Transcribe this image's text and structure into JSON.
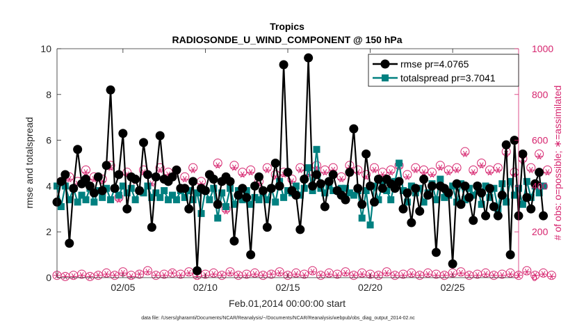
{
  "chart_data": {
    "type": "line",
    "title": "Tropics",
    "subtitle": "RADIOSONDE_U_WIND_COMPONENT @ 150 hPa",
    "xlabel": "Feb.01,2014 00:00:00 start",
    "ylabel": "rmse and totalspread",
    "y2label": "# of obs: o=possible; ∗=assimilated",
    "footer": "data file: /Users/gharamti/Documents/NCAR/Reanalysis/~/Documents/NCAR/Reanalysis/webpub/obs_diag_output_2014-02.nc",
    "xlim": [
      1.0,
      29.0
    ],
    "ylim": [
      0,
      10
    ],
    "y2lim": [
      0,
      1000
    ],
    "xticks": [
      5,
      10,
      15,
      20,
      25
    ],
    "xtick_labels": [
      "02/05",
      "02/10",
      "02/15",
      "02/20",
      "02/25"
    ],
    "yticks": [
      0,
      2,
      4,
      6,
      8,
      10
    ],
    "ytick_labels": [
      "0",
      "2",
      "4",
      "6",
      "8",
      "10"
    ],
    "y2ticks": [
      0,
      200,
      400,
      600,
      800,
      1000
    ],
    "y2tick_labels": [
      "0",
      "200",
      "400",
      "600",
      "800",
      "1000"
    ],
    "x_start": 1.0,
    "x_step": 0.25,
    "legend_position": "top-right",
    "colors": {
      "rmse": "#000000",
      "totalspread": "#008080",
      "obs": "#d6246e"
    },
    "series": [
      {
        "name": "rmse pr=4.0765",
        "axis": "left",
        "marker": "circle",
        "values": [
          3.3,
          4.2,
          4.5,
          1.5,
          3.9,
          5.6,
          4.1,
          4.3,
          4.0,
          3.7,
          4.4,
          3.8,
          4.9,
          8.2,
          3.9,
          4.5,
          6.3,
          3.0,
          4.4,
          4.3,
          3.8,
          5.9,
          4.5,
          2.2,
          4.4,
          6.2,
          4.3,
          4.2,
          4.4,
          4.7,
          3.9,
          3.9,
          3.0,
          4.2,
          0.3,
          3.9,
          3.8,
          4.5,
          4.3,
          3.2,
          4.2,
          4.4,
          4.2,
          1.6,
          3.6,
          3.9,
          3.5,
          1.0,
          4.0,
          4.4,
          3.8,
          2.2,
          3.9,
          5.0,
          4.0,
          9.3,
          4.6,
          3.8,
          3.6,
          2.1,
          4.3,
          9.6,
          4.0,
          4.5,
          4.1,
          3.1,
          4.2,
          4.5,
          3.8,
          3.6,
          3.4,
          4.6,
          6.5,
          3.9,
          3.2,
          5.4,
          4.0,
          3.3,
          4.3,
          3.9,
          4.3,
          4.1,
          3.9,
          4.2,
          3.0,
          3.7,
          2.4,
          3.9,
          2.9,
          4.3,
          3.6,
          4.0,
          1.1,
          4.0,
          3.9,
          3.7,
          0.6,
          4.1,
          3.2,
          4.0,
          3.5,
          2.5,
          4.0,
          3.7,
          2.7,
          3.9,
          3.1,
          2.7,
          3.6,
          5.8,
          1.0,
          6.0,
          2.7,
          5.4,
          3.5,
          3.0,
          4.1,
          4.6,
          2.7
        ]
      },
      {
        "name": "totalspread pr=3.7041",
        "axis": "left",
        "marker": "square",
        "values": [
          4.0,
          3.1,
          4.0,
          3.4,
          3.9,
          3.3,
          3.6,
          3.4,
          3.9,
          3.3,
          3.8,
          3.5,
          3.9,
          3.4,
          3.9,
          3.6,
          4.0,
          3.7,
          3.9,
          3.4,
          3.8,
          3.7,
          4.0,
          3.5,
          3.7,
          3.5,
          3.8,
          3.4,
          3.6,
          3.4,
          3.8,
          3.5,
          3.8,
          3.4,
          3.7,
          2.8,
          3.8,
          3.4,
          3.9,
          2.6,
          3.7,
          3.1,
          3.9,
          3.2,
          3.8,
          3.4,
          3.8,
          3.2,
          3.5,
          3.4,
          3.7,
          3.4,
          3.9,
          3.3,
          4.2,
          3.5,
          3.8,
          3.7,
          4.0,
          3.6,
          3.9,
          4.8,
          3.8,
          5.6,
          3.9,
          3.7,
          4.0,
          3.8,
          3.8,
          3.9,
          3.9,
          3.7,
          3.6,
          3.8,
          2.6,
          3.8,
          2.3,
          4.0,
          3.4,
          4.1,
          3.8,
          3.4,
          4.2,
          5.0,
          3.8,
          3.3,
          4.0,
          3.7,
          3.9,
          3.3,
          3.7,
          4.1,
          3.4,
          4.3,
          3.5,
          3.6,
          4.0,
          3.3,
          4.1,
          3.4,
          3.9,
          3.6,
          4.0,
          3.2,
          4.0,
          3.5,
          3.9,
          3.0,
          4.1,
          3.3,
          4.2,
          3.6,
          3.9,
          3.2,
          4.2,
          3.5,
          4.0,
          3.7,
          4.0
        ]
      },
      {
        "name": "possible",
        "axis": "right",
        "marker": "circle-open",
        "values": [
          10,
          420,
          5,
          440,
          10,
          420,
          15,
          470,
          5,
          440,
          10,
          430,
          20,
          490,
          10,
          350,
          25,
          460,
          10,
          430,
          15,
          470,
          30,
          420,
          10,
          480,
          15,
          460,
          20,
          470,
          15,
          440,
          25,
          480,
          10,
          420,
          15,
          450,
          20,
          500,
          10,
          300,
          25,
          490,
          10,
          460,
          15,
          470,
          20,
          420,
          10,
          480,
          15,
          450,
          25,
          460,
          10,
          430,
          20,
          480,
          15,
          460,
          30,
          490,
          10,
          470,
          20,
          480,
          15,
          440,
          25,
          490,
          10,
          470,
          20,
          450,
          15,
          480,
          10,
          460,
          25,
          470,
          10,
          490,
          15,
          450,
          20,
          480,
          10,
          470,
          20,
          460,
          15,
          490,
          10,
          470,
          20,
          480,
          25,
          550,
          10,
          470,
          15,
          500,
          20,
          470,
          10,
          480,
          15,
          550,
          20,
          460,
          10,
          520,
          30,
          480,
          10,
          540,
          20,
          470,
          10
        ]
      },
      {
        "name": "assimilated",
        "axis": "right",
        "marker": "asterisk",
        "values": [
          10,
          410,
          5,
          430,
          5,
          410,
          10,
          460,
          5,
          430,
          10,
          420,
          15,
          480,
          10,
          340,
          20,
          450,
          5,
          420,
          15,
          460,
          25,
          410,
          10,
          470,
          10,
          450,
          20,
          460,
          10,
          430,
          20,
          470,
          5,
          410,
          10,
          440,
          15,
          490,
          10,
          290,
          20,
          480,
          10,
          450,
          10,
          460,
          15,
          410,
          10,
          470,
          15,
          440,
          20,
          450,
          10,
          420,
          15,
          470,
          10,
          450,
          25,
          480,
          10,
          460,
          15,
          470,
          10,
          430,
          20,
          480,
          10,
          460,
          15,
          440,
          10,
          470,
          10,
          450,
          20,
          460,
          10,
          480,
          10,
          440,
          15,
          470,
          10,
          460,
          15,
          450,
          10,
          480,
          10,
          460,
          15,
          470,
          20,
          540,
          10,
          460,
          10,
          490,
          15,
          460,
          10,
          470,
          10,
          540,
          15,
          450,
          10,
          510,
          25,
          470,
          10,
          530,
          15,
          460,
          5
        ]
      }
    ]
  }
}
